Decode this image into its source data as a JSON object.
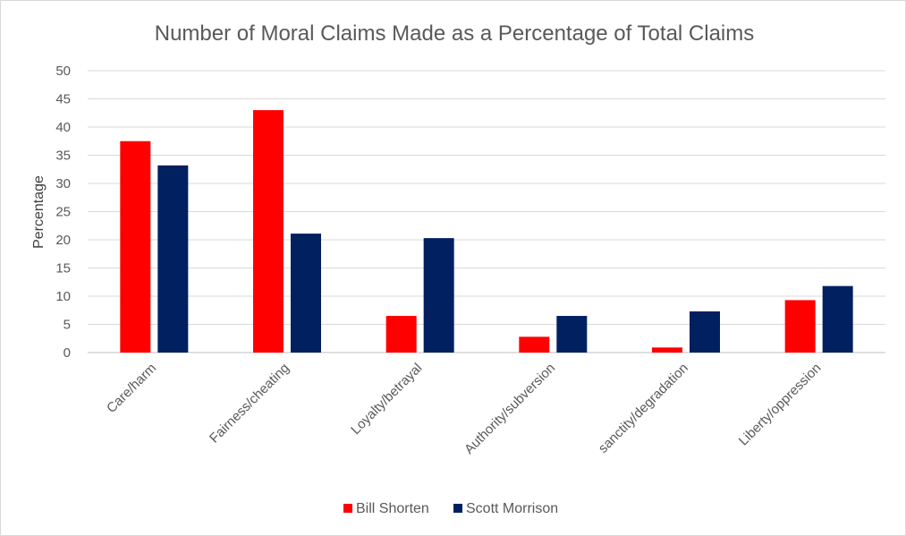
{
  "chart_data": {
    "type": "bar",
    "title": "Number of Moral Claims Made as a Percentage of Total Claims",
    "xlabel": "",
    "ylabel": "Percentage",
    "ylim": [
      0,
      50
    ],
    "yticks": [
      0,
      5,
      10,
      15,
      20,
      25,
      30,
      35,
      40,
      45,
      50
    ],
    "grid": true,
    "legend_position": "bottom",
    "categories": [
      "Care/harm",
      "Fairness/cheating",
      "Loyalty/betrayal",
      "Authority/subversion",
      "sanctity/degradation",
      "Liberty/oppression"
    ],
    "series": [
      {
        "name": "Bill Shorten",
        "color": "#ff0000",
        "values": [
          37.5,
          43,
          6.5,
          2.8,
          0.9,
          9.3
        ]
      },
      {
        "name": "Scott Morrison",
        "color": "#002060",
        "values": [
          33.2,
          21.1,
          20.3,
          6.5,
          7.3,
          11.8
        ]
      }
    ]
  }
}
